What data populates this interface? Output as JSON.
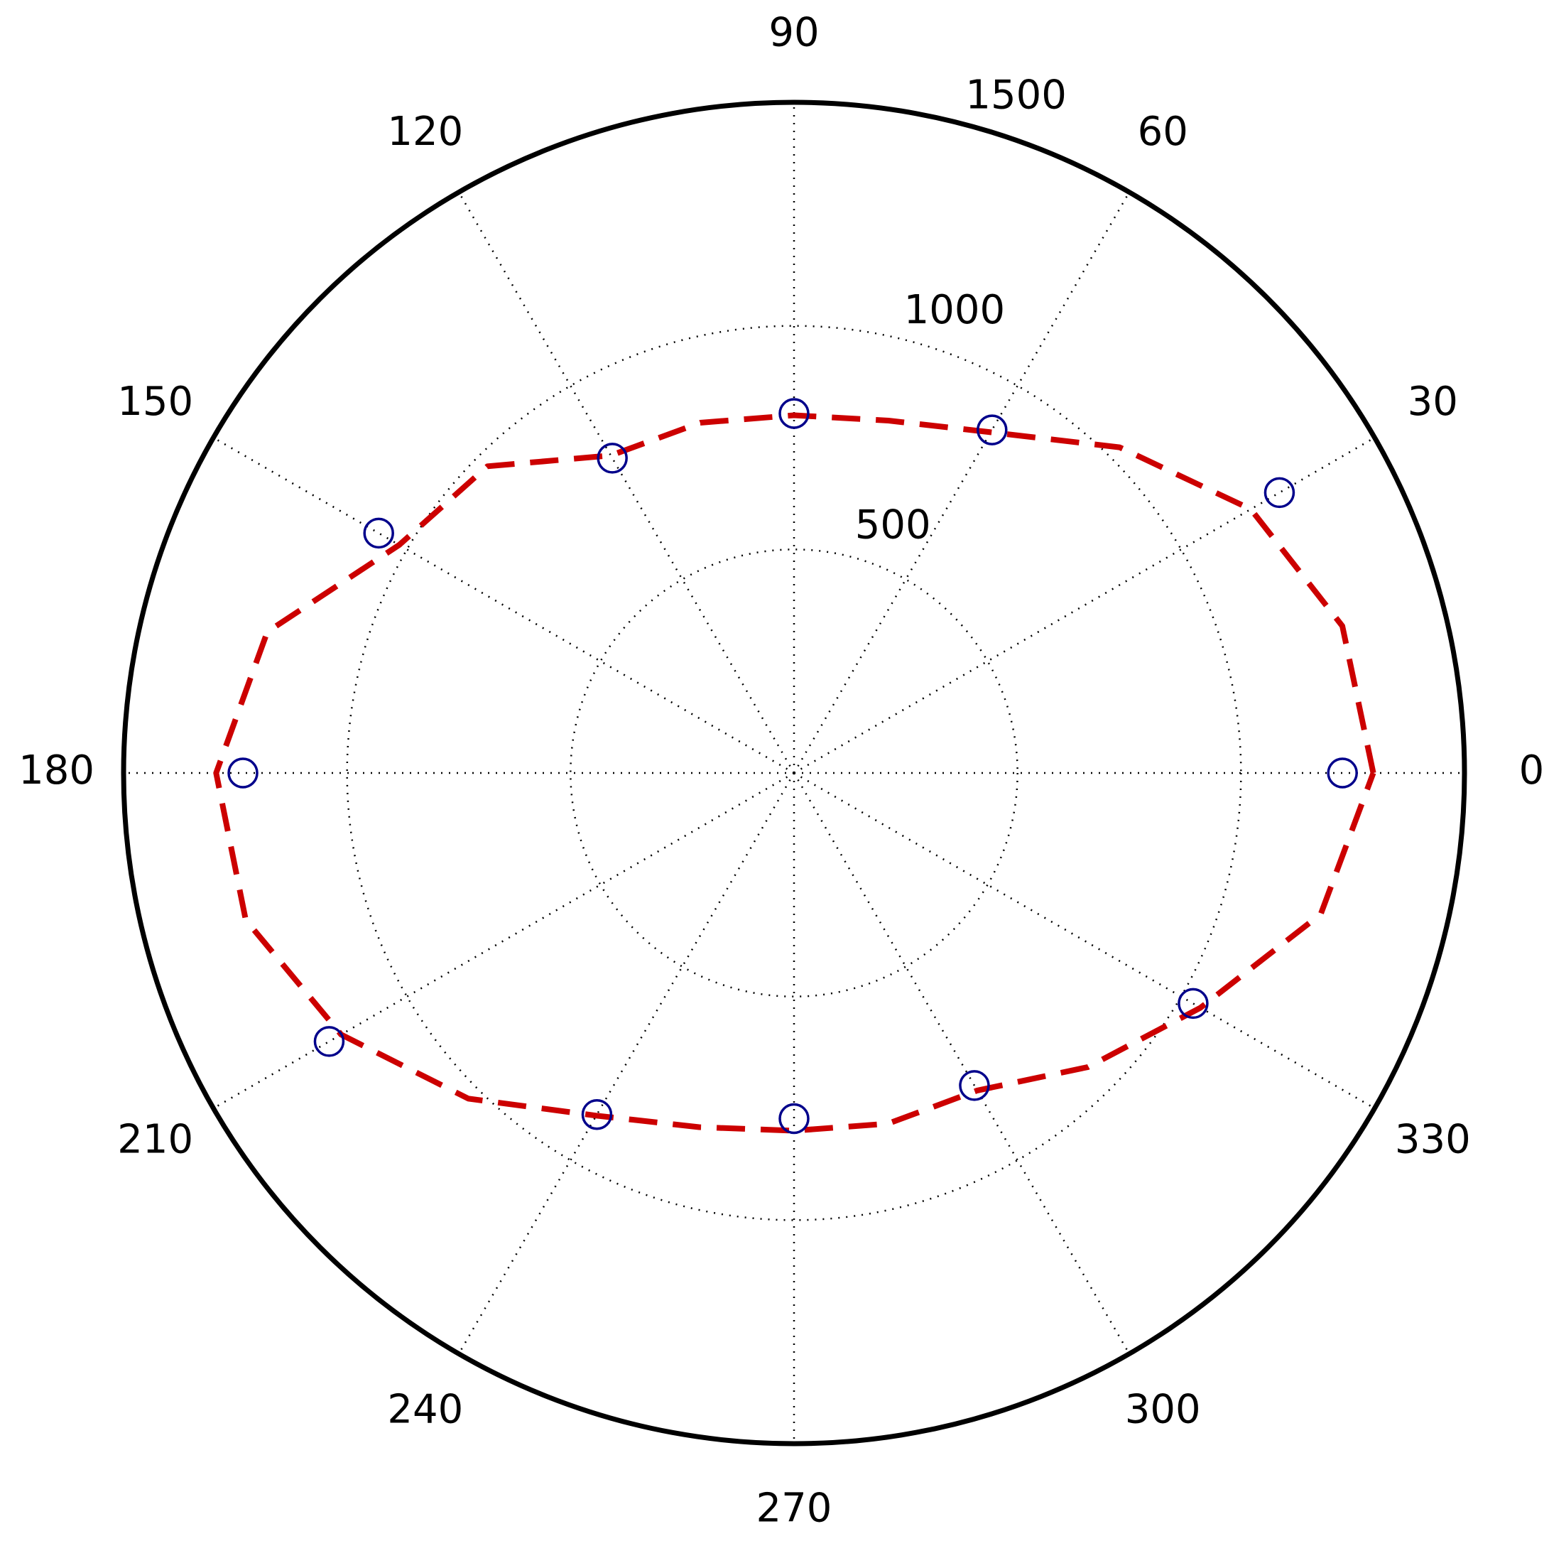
{
  "chart_data": {
    "type": "polar",
    "rlim": [
      0,
      1500
    ],
    "rticks": [
      500,
      1000,
      1500
    ],
    "thetaticks": [
      0,
      30,
      60,
      90,
      120,
      150,
      180,
      210,
      240,
      270,
      300,
      330
    ],
    "grid": true,
    "series": [
      {
        "color": "#cc0000",
        "style": "dashed",
        "theta": [
          0,
          15,
          30,
          45,
          60,
          75,
          90,
          105,
          120,
          135,
          150,
          165,
          180,
          195,
          210,
          225,
          240,
          255,
          270,
          285,
          300,
          315,
          330,
          345,
          360
        ],
        "values": [
          1296,
          1270,
          1180,
          1030,
          880,
          816,
          800,
          811,
          820,
          970,
          1020,
          1220,
          1293,
          1270,
          1170,
          1030,
          885,
          820,
          800,
          812,
          820,
          930,
          1050,
          1220,
          1296
        ]
      },
      {
        "color": "#00008b",
        "style": "markers",
        "theta": [
          0,
          30,
          60,
          90,
          120,
          150,
          180,
          210,
          240,
          270,
          300,
          330
        ],
        "values": [
          1227,
          1254,
          886,
          804,
          813,
          1073,
          1233,
          1201,
          882,
          773,
          807,
          1031
        ]
      }
    ]
  }
}
